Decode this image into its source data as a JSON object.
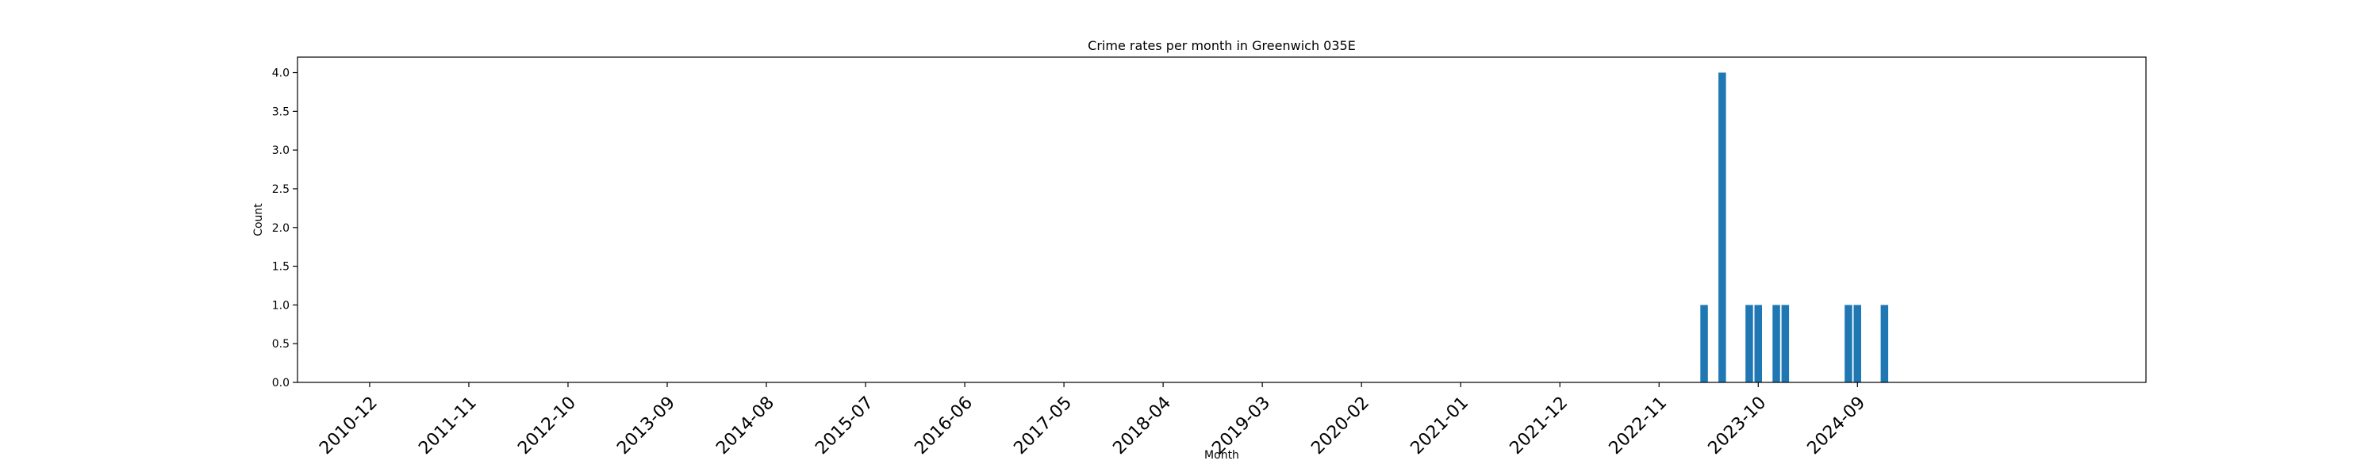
{
  "chart_data": {
    "type": "bar",
    "title": "Crime rates per month in Greenwich 035E",
    "xlabel": "Month",
    "ylabel": "Count",
    "x_tick_labels": [
      "2010-12",
      "2011-11",
      "2012-10",
      "2013-09",
      "2014-08",
      "2015-07",
      "2016-06",
      "2017-05",
      "2018-04",
      "2019-03",
      "2020-02",
      "2021-01",
      "2021-12",
      "2022-11",
      "2023-10",
      "2024-09"
    ],
    "y_tick_labels": [
      "0.0",
      "0.5",
      "1.0",
      "1.5",
      "2.0",
      "2.5",
      "3.0",
      "3.5",
      "4.0"
    ],
    "ylim": [
      0,
      4.2
    ],
    "xlim": [
      "2010-04",
      "2027-05"
    ],
    "grid": false,
    "bar_color": "#1f77b4",
    "series": [
      {
        "x": [
          "2023-04",
          "2023-06",
          "2023-09",
          "2023-10",
          "2023-12",
          "2024-01",
          "2024-08",
          "2024-09",
          "2024-12"
        ],
        "values": [
          1,
          4,
          1,
          1,
          1,
          1,
          1,
          1,
          1
        ]
      }
    ]
  }
}
